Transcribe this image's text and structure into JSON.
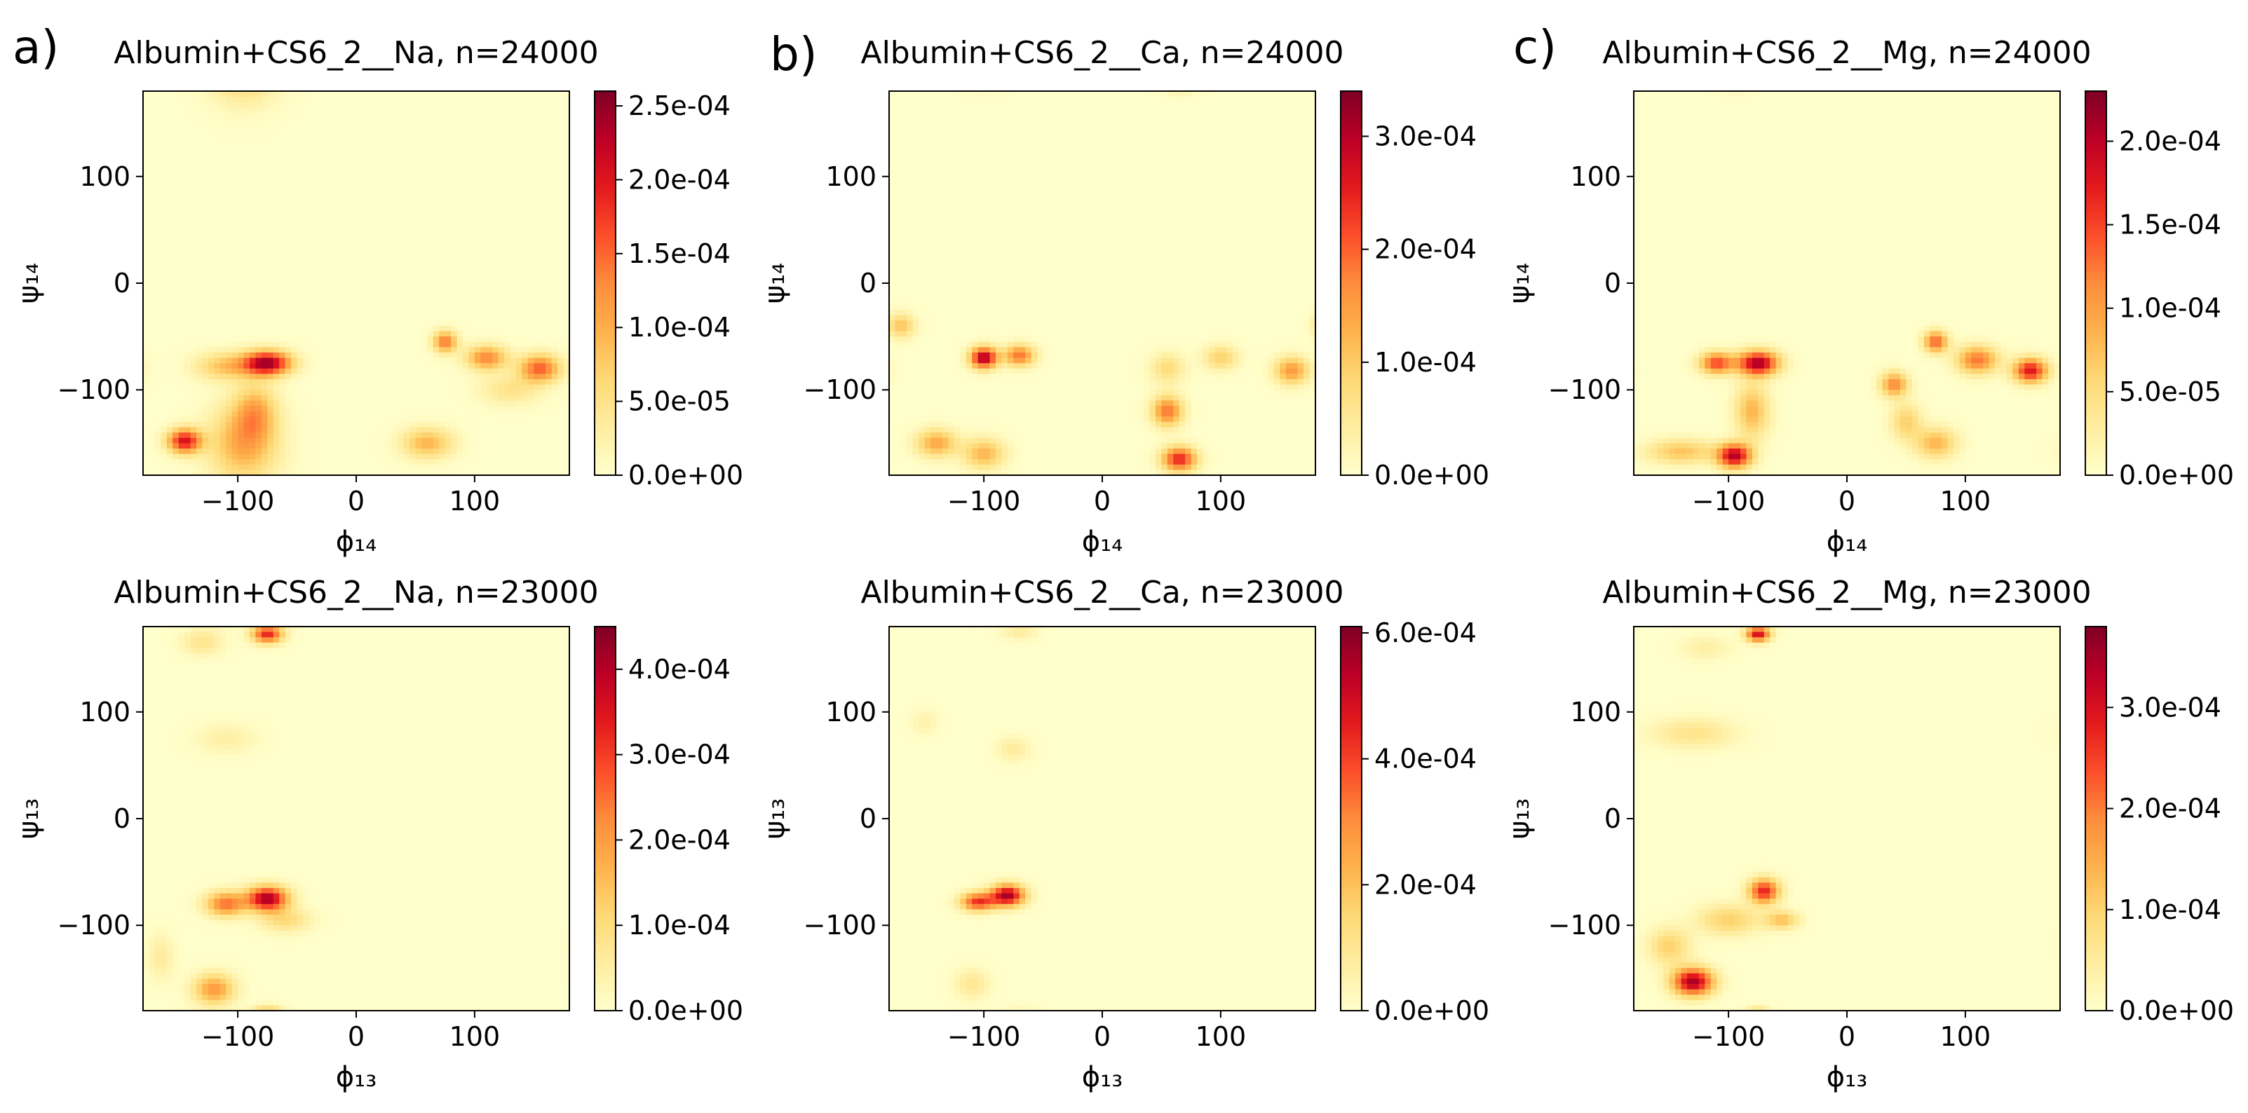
{
  "figure": {
    "panel_letters": [
      "a)",
      "b)",
      "c)"
    ]
  },
  "colormap": {
    "name": "YlOrRd",
    "stops": [
      "#ffffcc",
      "#ffeda0",
      "#fed976",
      "#feb24c",
      "#fd8d3c",
      "#fc4e2a",
      "#e31a1c",
      "#bd0026",
      "#800026"
    ]
  },
  "chart_data": [
    {
      "type": "heatmap",
      "panel": "a)",
      "title": "Albumin+CS6_2__Na, n=24000",
      "xlabel": "ϕ₁₄",
      "ylabel": "ψ₁₄",
      "xlim": [
        -180,
        180
      ],
      "ylim": [
        -180,
        180
      ],
      "xticks": [
        -100,
        0,
        100
      ],
      "yticks": [
        -100,
        0,
        100
      ],
      "xtick_labels": [
        "−100",
        "0",
        "100"
      ],
      "ytick_labels": [
        "−100",
        "0",
        "100"
      ],
      "colorbar": {
        "vmax": 0.00026,
        "ticks": [
          "0.0e+00",
          "5.0e-05",
          "1.0e-04",
          "1.5e-04",
          "2.0e-04",
          "2.5e-04"
        ],
        "tick_values": [
          0,
          5e-05,
          0.0001,
          0.00015,
          0.0002,
          0.00025
        ]
      },
      "hotspots": [
        {
          "phi": -75,
          "psi": -75,
          "sphi": 14,
          "spsi": 8,
          "w": 1.0
        },
        {
          "phi": -110,
          "psi": -78,
          "sphi": 18,
          "spsi": 9,
          "w": 0.35
        },
        {
          "phi": -145,
          "psi": -148,
          "sphi": 10,
          "spsi": 8,
          "w": 0.85
        },
        {
          "phi": -95,
          "psi": -150,
          "sphi": 20,
          "spsi": 25,
          "w": 0.45
        },
        {
          "phi": -85,
          "psi": -120,
          "sphi": 12,
          "spsi": 18,
          "w": 0.35
        },
        {
          "phi": 75,
          "psi": -55,
          "sphi": 7,
          "spsi": 7,
          "w": 0.6
        },
        {
          "phi": 110,
          "psi": -70,
          "sphi": 12,
          "spsi": 8,
          "w": 0.55
        },
        {
          "phi": 155,
          "psi": -80,
          "sphi": 12,
          "spsi": 9,
          "w": 0.65
        },
        {
          "phi": 60,
          "psi": -150,
          "sphi": 15,
          "spsi": 10,
          "w": 0.4
        },
        {
          "phi": 130,
          "psi": -100,
          "sphi": 18,
          "spsi": 10,
          "w": 0.2
        }
      ]
    },
    {
      "type": "heatmap",
      "panel": "b)",
      "title": "Albumin+CS6_2__Ca, n=24000",
      "xlabel": "ϕ₁₄",
      "ylabel": "ψ₁₄",
      "xlim": [
        -180,
        180
      ],
      "ylim": [
        -180,
        180
      ],
      "xticks": [
        -100,
        0,
        100
      ],
      "yticks": [
        -100,
        0,
        100
      ],
      "xtick_labels": [
        "−100",
        "0",
        "100"
      ],
      "ytick_labels": [
        "−100",
        "0",
        "100"
      ],
      "colorbar": {
        "vmax": 0.00034,
        "ticks": [
          "0.0e+00",
          "1.0e-04",
          "2.0e-04",
          "3.0e-04"
        ],
        "tick_values": [
          0,
          0.0001,
          0.0002,
          0.0003
        ]
      },
      "hotspots": [
        {
          "phi": -100,
          "psi": -70,
          "sphi": 8,
          "spsi": 7,
          "w": 1.0
        },
        {
          "phi": -70,
          "psi": -68,
          "sphi": 9,
          "spsi": 7,
          "w": 0.6
        },
        {
          "phi": -140,
          "psi": -150,
          "sphi": 12,
          "spsi": 9,
          "w": 0.45
        },
        {
          "phi": -100,
          "psi": -160,
          "sphi": 12,
          "spsi": 10,
          "w": 0.4
        },
        {
          "phi": -170,
          "psi": -40,
          "sphi": 8,
          "spsi": 8,
          "w": 0.35
        },
        {
          "phi": 55,
          "psi": -120,
          "sphi": 9,
          "spsi": 10,
          "w": 0.6
        },
        {
          "phi": 65,
          "psi": -165,
          "sphi": 10,
          "spsi": 8,
          "w": 0.8
        },
        {
          "phi": 100,
          "psi": -70,
          "sphi": 10,
          "spsi": 8,
          "w": 0.3
        },
        {
          "phi": 160,
          "psi": -82,
          "sphi": 10,
          "spsi": 9,
          "w": 0.5
        },
        {
          "phi": 55,
          "psi": -80,
          "sphi": 10,
          "spsi": 10,
          "w": 0.25
        }
      ]
    },
    {
      "type": "heatmap",
      "panel": "c)",
      "title": "Albumin+CS6_2__Mg, n=24000",
      "xlabel": "ϕ₁₄",
      "ylabel": "ψ₁₄",
      "xlim": [
        -180,
        180
      ],
      "ylim": [
        -180,
        180
      ],
      "xticks": [
        -100,
        0,
        100
      ],
      "yticks": [
        -100,
        0,
        100
      ],
      "xtick_labels": [
        "−100",
        "0",
        "100"
      ],
      "ytick_labels": [
        "−100",
        "0",
        "100"
      ],
      "colorbar": {
        "vmax": 0.00023,
        "ticks": [
          "0.0e+00",
          "5.0e-05",
          "1.0e-04",
          "1.5e-04",
          "2.0e-04"
        ],
        "tick_values": [
          0,
          5e-05,
          0.0001,
          0.00015,
          0.0002
        ]
      },
      "hotspots": [
        {
          "phi": -75,
          "psi": -75,
          "sphi": 12,
          "spsi": 8,
          "w": 1.0
        },
        {
          "phi": -110,
          "psi": -75,
          "sphi": 10,
          "spsi": 7,
          "w": 0.7
        },
        {
          "phi": -95,
          "psi": -162,
          "sphi": 10,
          "spsi": 8,
          "w": 0.95
        },
        {
          "phi": -80,
          "psi": -120,
          "sphi": 10,
          "spsi": 18,
          "w": 0.4
        },
        {
          "phi": -140,
          "psi": -158,
          "sphi": 20,
          "spsi": 8,
          "w": 0.35
        },
        {
          "phi": 75,
          "psi": -55,
          "sphi": 7,
          "spsi": 7,
          "w": 0.65
        },
        {
          "phi": 110,
          "psi": -72,
          "sphi": 12,
          "spsi": 9,
          "w": 0.6
        },
        {
          "phi": 155,
          "psi": -82,
          "sphi": 10,
          "spsi": 8,
          "w": 0.85
        },
        {
          "phi": 40,
          "psi": -95,
          "sphi": 8,
          "spsi": 8,
          "w": 0.55
        },
        {
          "phi": 75,
          "psi": -150,
          "sphi": 12,
          "spsi": 10,
          "w": 0.4
        },
        {
          "phi": 50,
          "psi": -130,
          "sphi": 9,
          "spsi": 12,
          "w": 0.3
        }
      ]
    },
    {
      "type": "heatmap",
      "panel": "a)",
      "title": "Albumin+CS6_2__Na, n=23000",
      "xlabel": "ϕ₁₃",
      "ylabel": "ψ₁₃",
      "xlim": [
        -180,
        180
      ],
      "ylim": [
        -180,
        180
      ],
      "xticks": [
        -100,
        0,
        100
      ],
      "yticks": [
        -100,
        0,
        100
      ],
      "xtick_labels": [
        "−100",
        "0",
        "100"
      ],
      "ytick_labels": [
        "−100",
        "0",
        "100"
      ],
      "colorbar": {
        "vmax": 0.00045,
        "ticks": [
          "0.0e+00",
          "1.0e-04",
          "2.0e-04",
          "3.0e-04",
          "4.0e-04"
        ],
        "tick_values": [
          0,
          0.0001,
          0.0002,
          0.0003,
          0.0004
        ]
      },
      "hotspots": [
        {
          "phi": -75,
          "psi": -75,
          "sphi": 12,
          "spsi": 8,
          "w": 1.0
        },
        {
          "phi": -110,
          "psi": -80,
          "sphi": 12,
          "spsi": 8,
          "w": 0.6
        },
        {
          "phi": -75,
          "psi": 173,
          "sphi": 9,
          "spsi": 6,
          "w": 0.8
        },
        {
          "phi": -130,
          "psi": 165,
          "sphi": 12,
          "spsi": 8,
          "w": 0.2
        },
        {
          "phi": -120,
          "psi": -160,
          "sphi": 12,
          "spsi": 10,
          "w": 0.5
        },
        {
          "phi": -60,
          "psi": -95,
          "sphi": 15,
          "spsi": 8,
          "w": 0.25
        },
        {
          "phi": -110,
          "psi": 75,
          "sphi": 18,
          "spsi": 10,
          "w": 0.12
        },
        {
          "phi": -165,
          "psi": -130,
          "sphi": 8,
          "spsi": 15,
          "w": 0.15
        }
      ]
    },
    {
      "type": "heatmap",
      "panel": "b)",
      "title": "Albumin+CS6_2__Ca, n=23000",
      "xlabel": "ϕ₁₃",
      "ylabel": "ψ₁₃",
      "xlim": [
        -180,
        180
      ],
      "ylim": [
        -180,
        180
      ],
      "xticks": [
        -100,
        0,
        100
      ],
      "yticks": [
        -100,
        0,
        100
      ],
      "xtick_labels": [
        "−100",
        "0",
        "100"
      ],
      "ytick_labels": [
        "−100",
        "0",
        "100"
      ],
      "colorbar": {
        "vmax": 0.00061,
        "ticks": [
          "0.0e+00",
          "2.0e-04",
          "4.0e-04",
          "6.0e-04"
        ],
        "tick_values": [
          0,
          0.0002,
          0.0004,
          0.0006
        ]
      },
      "hotspots": [
        {
          "phi": -80,
          "psi": -72,
          "sphi": 10,
          "spsi": 7,
          "w": 1.0
        },
        {
          "phi": -105,
          "psi": -78,
          "sphi": 10,
          "spsi": 6,
          "w": 0.75
        },
        {
          "phi": -75,
          "psi": 65,
          "sphi": 10,
          "spsi": 8,
          "w": 0.15
        },
        {
          "phi": -70,
          "psi": 175,
          "sphi": 10,
          "spsi": 5,
          "w": 0.15
        },
        {
          "phi": -150,
          "psi": 90,
          "sphi": 8,
          "spsi": 8,
          "w": 0.1
        },
        {
          "phi": -110,
          "psi": -155,
          "sphi": 10,
          "spsi": 10,
          "w": 0.18
        }
      ]
    },
    {
      "type": "heatmap",
      "panel": "c)",
      "title": "Albumin+CS6_2__Mg, n=23000",
      "xlabel": "ϕ₁₃",
      "ylabel": "ψ₁₃",
      "xlim": [
        -180,
        180
      ],
      "ylim": [
        -180,
        180
      ],
      "xticks": [
        -100,
        0,
        100
      ],
      "yticks": [
        -100,
        0,
        100
      ],
      "xtick_labels": [
        "−100",
        "0",
        "100"
      ],
      "ytick_labels": [
        "−100",
        "0",
        "100"
      ],
      "colorbar": {
        "vmax": 0.00038,
        "ticks": [
          "0.0e+00",
          "1.0e-04",
          "2.0e-04",
          "3.0e-04"
        ],
        "tick_values": [
          0,
          0.0001,
          0.0002,
          0.0003
        ]
      },
      "hotspots": [
        {
          "phi": -130,
          "psi": -153,
          "sphi": 12,
          "spsi": 9,
          "w": 1.0
        },
        {
          "phi": -75,
          "psi": 173,
          "sphi": 7,
          "spsi": 5,
          "w": 0.9
        },
        {
          "phi": -70,
          "psi": -68,
          "sphi": 9,
          "spsi": 8,
          "w": 0.8
        },
        {
          "phi": -100,
          "psi": -95,
          "sphi": 18,
          "spsi": 10,
          "w": 0.3
        },
        {
          "phi": -130,
          "psi": 80,
          "sphi": 25,
          "spsi": 10,
          "w": 0.2
        },
        {
          "phi": -150,
          "psi": -120,
          "sphi": 12,
          "spsi": 12,
          "w": 0.3
        },
        {
          "phi": -55,
          "psi": -95,
          "sphi": 10,
          "spsi": 6,
          "w": 0.35
        },
        {
          "phi": -120,
          "psi": 160,
          "sphi": 15,
          "spsi": 8,
          "w": 0.12
        }
      ]
    }
  ]
}
